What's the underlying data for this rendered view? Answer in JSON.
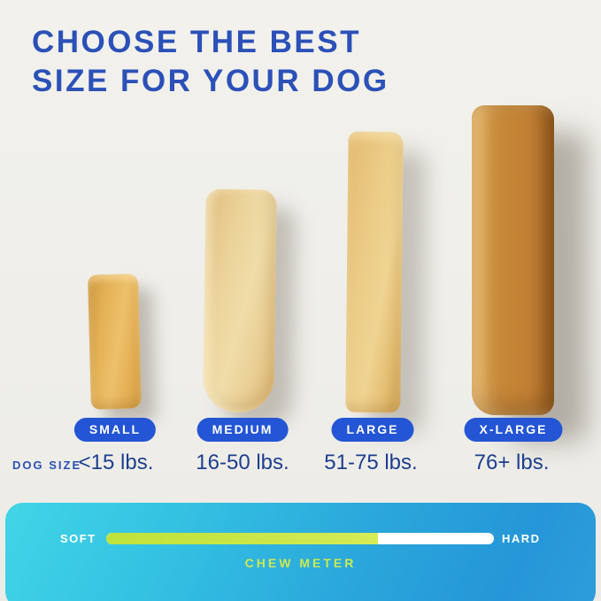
{
  "title": {
    "line1": "CHOOSE THE BEST",
    "line2": "SIZE FOR YOUR DOG"
  },
  "dog_size_label": "DOG SIZE",
  "sizes": [
    {
      "label": "SMALL",
      "weight": "<15 lbs.",
      "chew": "small-chew-stick"
    },
    {
      "label": "MEDIUM",
      "weight": "16-50 lbs.",
      "chew": "medium-chew-stick"
    },
    {
      "label": "LARGE",
      "weight": "51-75 lbs.",
      "chew": "large-chew-stick"
    },
    {
      "label": "X-LARGE",
      "weight": "76+ lbs.",
      "chew": "x-large-chew-stick"
    }
  ],
  "chew_meter": {
    "title": "CHEW METER",
    "left_label": "SOFT",
    "right_label": "HARD",
    "fill_percent": 70
  },
  "colors": {
    "title_blue": "#2b51b8",
    "pill_blue": "#2355d4",
    "weight_navy": "#1d3f8f",
    "meter_green": "#cbe649",
    "card_gradient_start": "#41d5e7",
    "card_gradient_end": "#2596d8",
    "background": "#f0efe9"
  }
}
